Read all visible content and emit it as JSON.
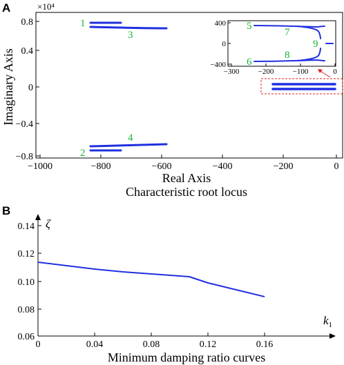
{
  "panel_a": {
    "letter": "A",
    "exponent": "×10⁴",
    "xlabel": "Real Axis",
    "ylabel": "Imaginary  Axis",
    "caption": "Characteristic root locus",
    "xticks": [
      "−1000",
      "−800",
      "−600",
      "−400",
      "−200",
      "0"
    ],
    "yticks": [
      "0.8",
      "0.4",
      "0",
      "−0.4",
      "−0.8"
    ],
    "labels": [
      "1",
      "2",
      "3",
      "4"
    ],
    "inset": {
      "xticks": [
        "−300",
        "−200",
        "−100",
        "0"
      ],
      "yticks": [
        "400",
        "0",
        "−400"
      ],
      "labels": [
        "5",
        "6",
        "7",
        "8",
        "9"
      ]
    }
  },
  "panel_b": {
    "letter": "B",
    "ylabel_symbol": "ζ",
    "xlabel_symbol": "k",
    "xlabel_subscript": "1",
    "caption": "Minimum damping ratio curves",
    "xticks": [
      "0",
      "0.04",
      "0.08",
      "0.12",
      "0.16"
    ],
    "yticks": [
      "0.14",
      "0.12",
      "0.10",
      "0.08",
      "0.06"
    ]
  },
  "colors": {
    "curve": "#1f2fe0",
    "label": "#18b436",
    "zoom_box": "#e02020"
  },
  "chart_data": [
    {
      "type": "line",
      "title": "Characteristic root locus",
      "xlabel": "Real Axis",
      "ylabel": "Imaginary  Axis",
      "xlim": [
        -1000,
        0
      ],
      "ylim": [
        -0.8,
        0.8
      ],
      "y_multiplier": "×10⁴",
      "series": [
        {
          "name": "1",
          "x": [
            -830,
            -720
          ],
          "y": [
            0.7,
            0.7
          ]
        },
        {
          "name": "3",
          "x": [
            -830,
            -575
          ],
          "y": [
            0.66,
            0.64
          ]
        },
        {
          "name": "4",
          "x": [
            -830,
            -575
          ],
          "y": [
            -0.66,
            -0.64
          ]
        },
        {
          "name": "2",
          "x": [
            -830,
            -720
          ],
          "y": [
            -0.7,
            -0.7
          ]
        },
        {
          "x": [
            -220,
            -20
          ],
          "y": [
            0.02,
            0.02
          ]
        },
        {
          "x": [
            -220,
            -20
          ],
          "y": [
            -0.02,
            -0.02
          ]
        }
      ],
      "inset": {
        "xlim": [
          -300,
          0
        ],
        "ylim": [
          -400,
          400
        ],
        "series": [
          {
            "name": "5",
            "x": [
              -230,
              -150,
              -100,
              -60,
              -35
            ],
            "y": [
              345,
              340,
              330,
              315,
              310
            ]
          },
          {
            "name": "7",
            "x": [
              -110,
              -80,
              -60,
              -45,
              -35
            ],
            "y": [
              330,
              300,
              260,
              220,
              180
            ]
          },
          {
            "name": "6",
            "x": [
              -230,
              -150,
              -100,
              -60,
              -35
            ],
            "y": [
              -345,
              -340,
              -330,
              -315,
              -310
            ]
          },
          {
            "name": "8",
            "x": [
              -110,
              -80,
              -60,
              -45,
              -35
            ],
            "y": [
              -330,
              -300,
              -260,
              -220,
              -180
            ]
          },
          {
            "name": "9",
            "x": [
              -30,
              -10
            ],
            "y": [
              0,
              0
            ]
          }
        ]
      }
    },
    {
      "type": "line",
      "title": "Minimum damping ratio curves",
      "xlabel": "k1",
      "ylabel": "ζ",
      "xlim": [
        0,
        0.17
      ],
      "ylim": [
        0.06,
        0.15
      ],
      "series": [
        {
          "x": [
            0,
            0.02,
            0.04,
            0.06,
            0.08,
            0.1,
            0.107,
            0.12,
            0.14,
            0.16
          ],
          "y": [
            0.115,
            0.1125,
            0.11,
            0.108,
            0.1065,
            0.105,
            0.1045,
            0.1,
            0.095,
            0.09
          ]
        }
      ]
    }
  ]
}
